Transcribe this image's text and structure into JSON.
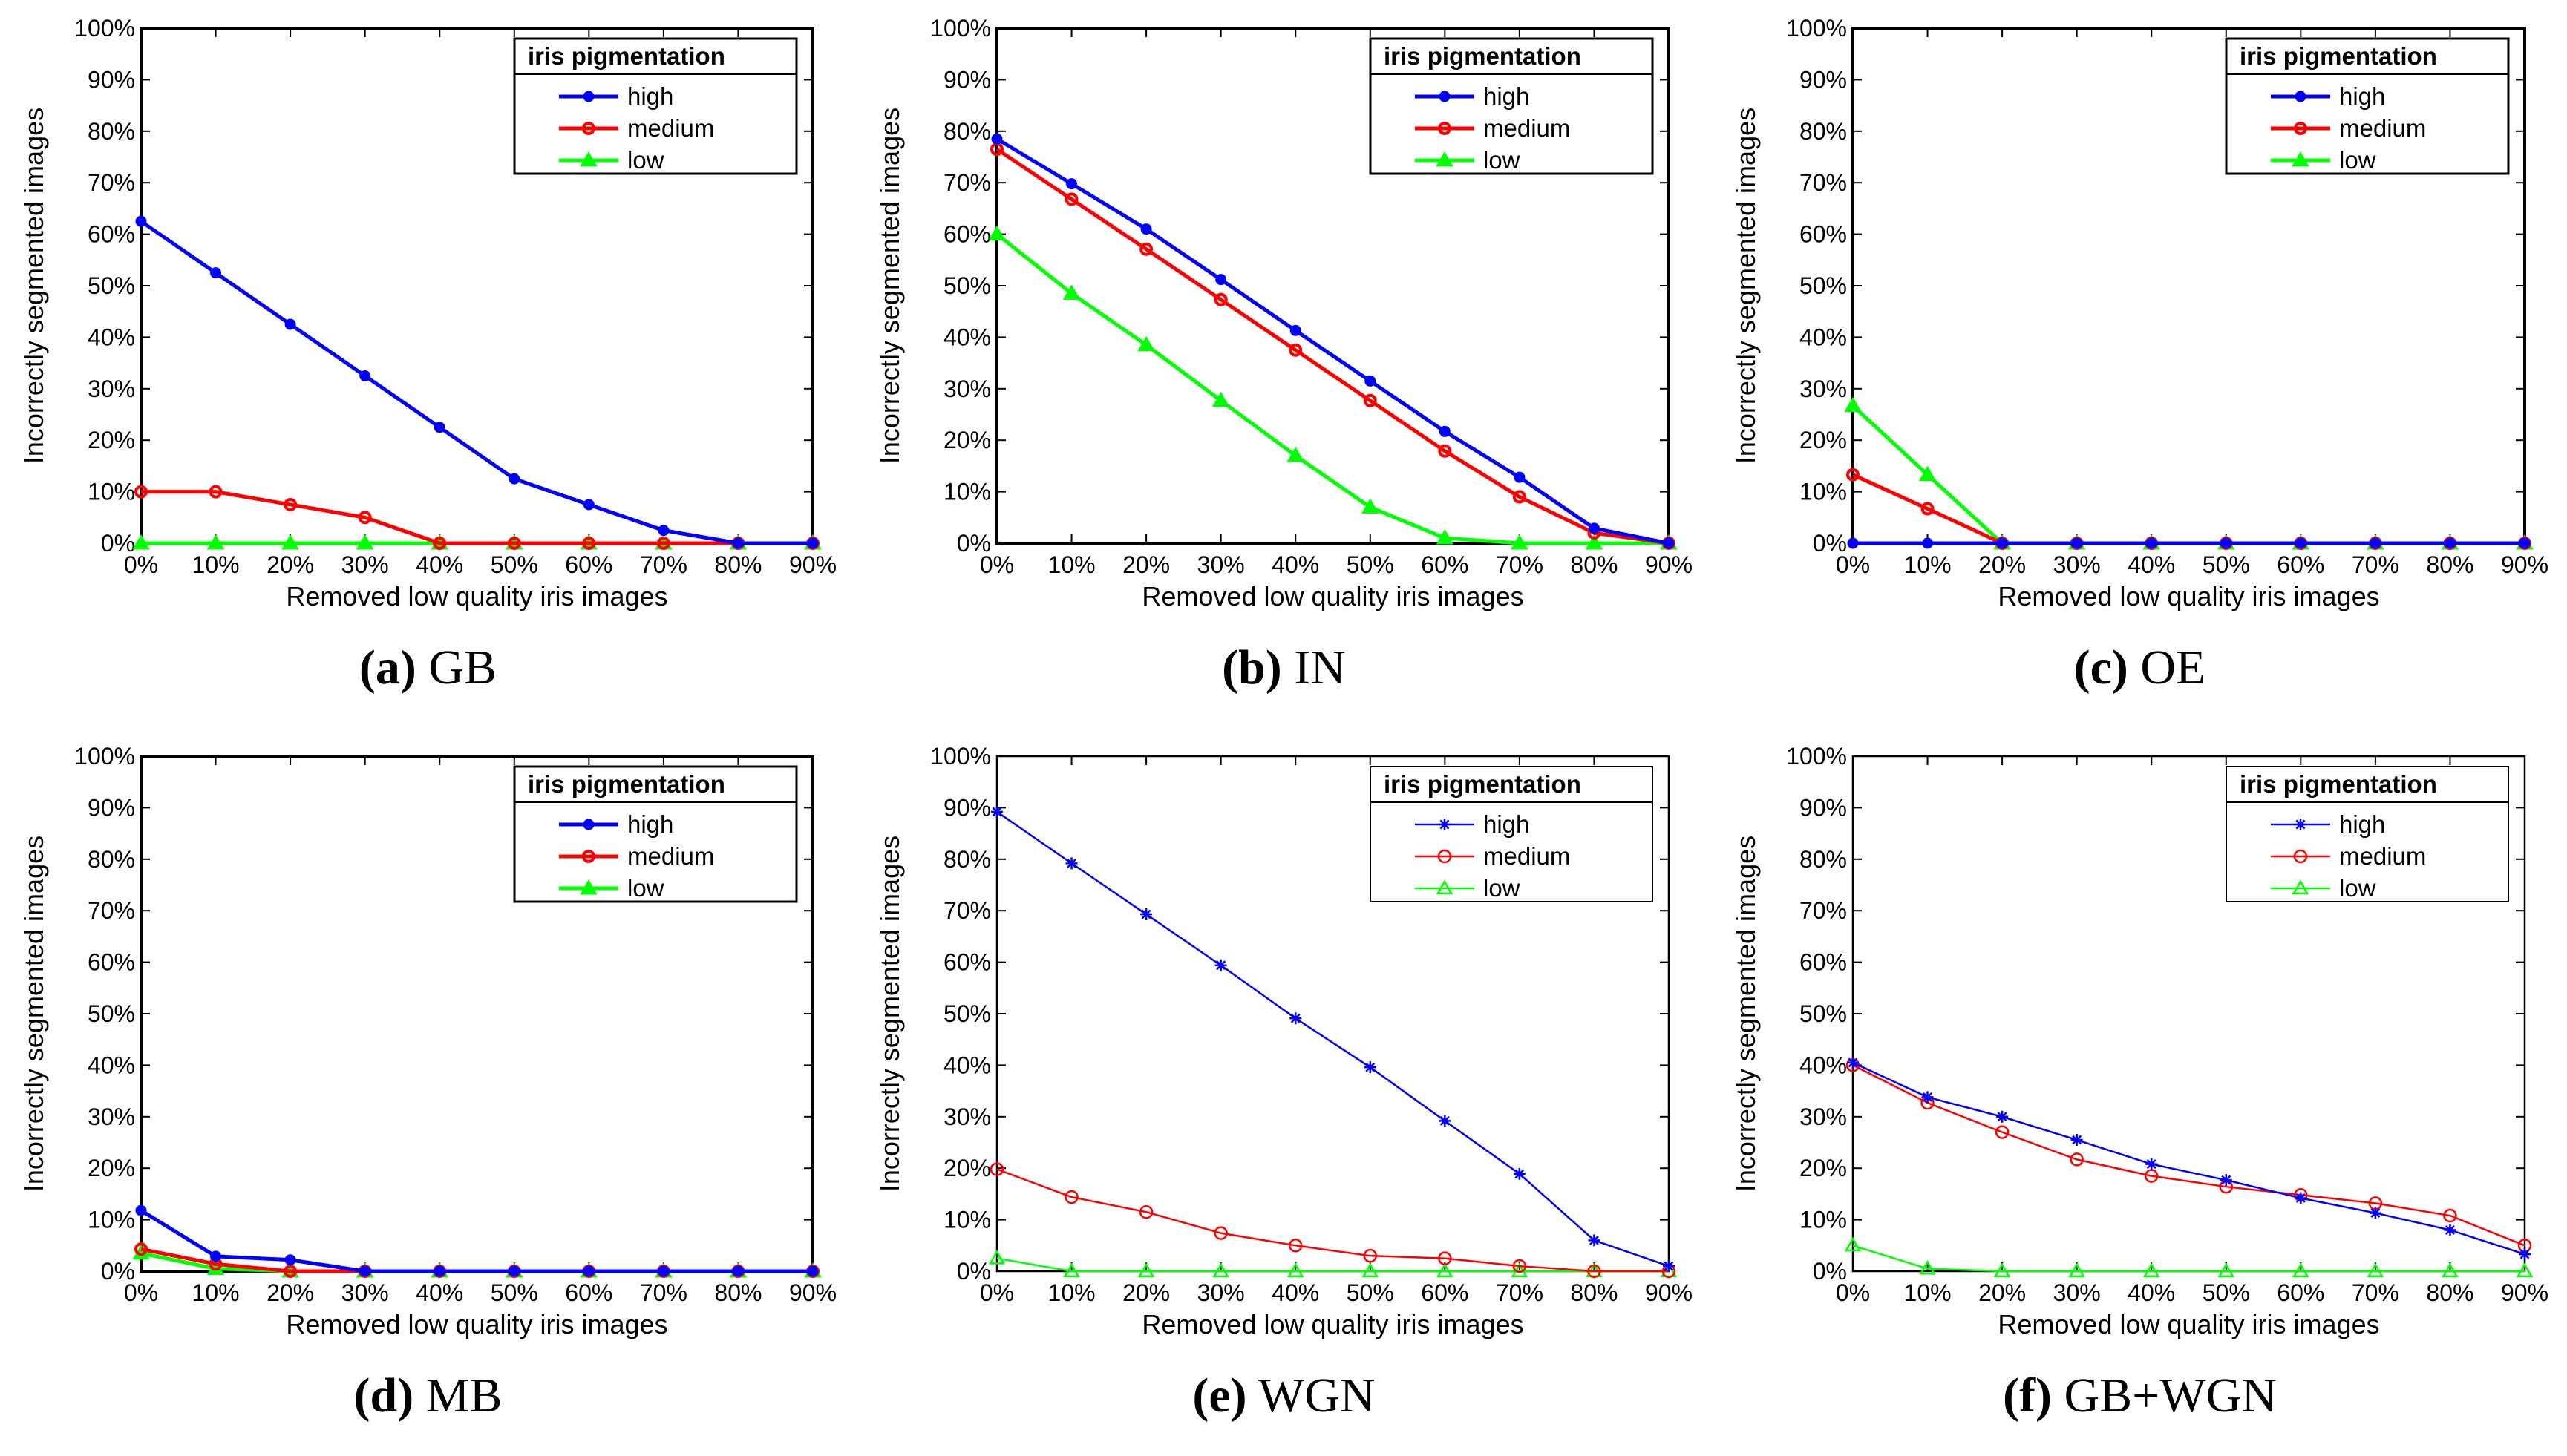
{
  "chart_data": [
    {
      "type": "line",
      "caption_letter": "(a)",
      "caption_text": "GB",
      "xlabel": "Removed low quality iris images",
      "ylabel": "Incorrectly segmented images",
      "categories": [
        "0%",
        "10%",
        "20%",
        "30%",
        "40%",
        "50%",
        "60%",
        "70%",
        "80%",
        "90%"
      ],
      "yticks": [
        "0%",
        "10%",
        "20%",
        "30%",
        "40%",
        "50%",
        "60%",
        "70%",
        "80%",
        "90%",
        "100%"
      ],
      "ylim": [
        0,
        100
      ],
      "legend_title": "iris pigmentation",
      "legend_position": "top-right",
      "style": "bold",
      "series": [
        {
          "name": "high",
          "color": "#0000ff",
          "marker": "dot",
          "values": [
            62.5,
            52.5,
            42.5,
            32.5,
            22.5,
            12.5,
            7.5,
            2.5,
            0,
            0
          ]
        },
        {
          "name": "medium",
          "color": "#ff0000",
          "marker": "circle",
          "values": [
            10,
            10,
            7.5,
            5,
            0,
            0,
            0,
            0,
            0,
            0
          ]
        },
        {
          "name": "low",
          "color": "#00ff00",
          "marker": "triangle",
          "values": [
            0,
            0,
            0,
            0,
            0,
            0,
            0,
            0,
            0,
            0
          ]
        }
      ]
    },
    {
      "type": "line",
      "caption_letter": "(b)",
      "caption_text": "IN",
      "xlabel": "Removed low quality iris images",
      "ylabel": "Incorrectly segmented images",
      "categories": [
        "0%",
        "10%",
        "20%",
        "30%",
        "40%",
        "50%",
        "60%",
        "70%",
        "80%",
        "90%"
      ],
      "yticks": [
        "0%",
        "10%",
        "20%",
        "30%",
        "40%",
        "50%",
        "60%",
        "70%",
        "80%",
        "90%",
        "100%"
      ],
      "ylim": [
        0,
        100
      ],
      "legend_title": "iris pigmentation",
      "legend_position": "top-right",
      "style": "bold",
      "series": [
        {
          "name": "high",
          "color": "#0000ff",
          "marker": "dot",
          "values": [
            78.5,
            69.8,
            61.0,
            51.2,
            41.3,
            31.5,
            21.7,
            12.8,
            2.9,
            0
          ]
        },
        {
          "name": "medium",
          "color": "#ff0000",
          "marker": "circle",
          "values": [
            76.5,
            66.8,
            57.1,
            47.3,
            37.5,
            27.7,
            17.9,
            9.0,
            2.0,
            0
          ]
        },
        {
          "name": "low",
          "color": "#00ff00",
          "marker": "triangle",
          "values": [
            60.0,
            48.5,
            38.5,
            27.7,
            17.0,
            7.0,
            1.0,
            0,
            0,
            0
          ]
        }
      ]
    },
    {
      "type": "line",
      "caption_letter": "(c)",
      "caption_text": "OE",
      "xlabel": "Removed low quality iris images",
      "ylabel": "Incorrectly segmented images",
      "categories": [
        "0%",
        "10%",
        "20%",
        "30%",
        "40%",
        "50%",
        "60%",
        "70%",
        "80%",
        "90%"
      ],
      "yticks": [
        "0%",
        "10%",
        "20%",
        "30%",
        "40%",
        "50%",
        "60%",
        "70%",
        "80%",
        "90%",
        "100%"
      ],
      "ylim": [
        0,
        100
      ],
      "legend_title": "iris pigmentation",
      "legend_position": "top-right",
      "style": "bold",
      "series": [
        {
          "name": "high",
          "color": "#0000ff",
          "marker": "dot",
          "values": [
            0,
            0,
            0,
            0,
            0,
            0,
            0,
            0,
            0,
            0
          ]
        },
        {
          "name": "medium",
          "color": "#ff0000",
          "marker": "circle",
          "values": [
            13.3,
            6.7,
            0,
            0,
            0,
            0,
            0,
            0,
            0,
            0
          ]
        },
        {
          "name": "low",
          "color": "#00ff00",
          "marker": "triangle",
          "values": [
            26.7,
            13.3,
            0,
            0,
            0,
            0,
            0,
            0,
            0,
            0
          ]
        }
      ]
    },
    {
      "type": "line",
      "caption_letter": "(d)",
      "caption_text": "MB",
      "xlabel": "Removed low quality iris images",
      "ylabel": "Incorrectly segmented images",
      "categories": [
        "0%",
        "10%",
        "20%",
        "30%",
        "40%",
        "50%",
        "60%",
        "70%",
        "80%",
        "90%"
      ],
      "yticks": [
        "0%",
        "10%",
        "20%",
        "30%",
        "40%",
        "50%",
        "60%",
        "70%",
        "80%",
        "90%",
        "100%"
      ],
      "ylim": [
        0,
        100
      ],
      "legend_title": "iris pigmentation",
      "legend_position": "top-right",
      "style": "bold",
      "series": [
        {
          "name": "high",
          "color": "#0000ff",
          "marker": "dot",
          "values": [
            11.8,
            2.9,
            2.2,
            0,
            0,
            0,
            0,
            0,
            0,
            0
          ]
        },
        {
          "name": "medium",
          "color": "#ff0000",
          "marker": "circle",
          "values": [
            4.3,
            1.4,
            0,
            0,
            0,
            0,
            0,
            0,
            0,
            0
          ]
        },
        {
          "name": "low",
          "color": "#00ff00",
          "marker": "triangle",
          "values": [
            3.5,
            0.5,
            0,
            0,
            0,
            0,
            0,
            0,
            0,
            0
          ]
        }
      ]
    },
    {
      "type": "line",
      "caption_letter": "(e)",
      "caption_text": "WGN",
      "xlabel": "Removed low quality iris images",
      "ylabel": "Incorrectly segmented images",
      "categories": [
        "0%",
        "10%",
        "20%",
        "30%",
        "40%",
        "50%",
        "60%",
        "70%",
        "80%",
        "90%"
      ],
      "yticks": [
        "0%",
        "10%",
        "20%",
        "30%",
        "40%",
        "50%",
        "60%",
        "70%",
        "80%",
        "90%",
        "100%"
      ],
      "ylim": [
        0,
        100
      ],
      "legend_title": "iris pigmentation",
      "legend_position": "top-right",
      "style": "thin",
      "series": [
        {
          "name": "high",
          "color": "#0000ff",
          "marker": "star",
          "values": [
            89.2,
            79.2,
            69.3,
            59.4,
            49.1,
            39.6,
            29.2,
            18.9,
            6.0,
            1.0
          ]
        },
        {
          "name": "medium",
          "color": "#ff0000",
          "marker": "circle",
          "values": [
            19.8,
            14.4,
            11.5,
            7.4,
            5.0,
            3.0,
            2.5,
            1.0,
            0,
            0
          ]
        },
        {
          "name": "low",
          "color": "#00ff00",
          "marker": "triangle",
          "values": [
            2.5,
            0,
            0,
            0,
            0,
            0,
            0,
            0,
            0,
            0
          ]
        }
      ]
    },
    {
      "type": "line",
      "caption_letter": "(f)",
      "caption_text": "GB+WGN",
      "xlabel": "Removed low quality iris images",
      "ylabel": "Incorrectly segmented images",
      "categories": [
        "0%",
        "10%",
        "20%",
        "30%",
        "40%",
        "50%",
        "60%",
        "70%",
        "80%",
        "90%"
      ],
      "yticks": [
        "0%",
        "10%",
        "20%",
        "30%",
        "40%",
        "50%",
        "60%",
        "70%",
        "80%",
        "90%",
        "100%"
      ],
      "ylim": [
        0,
        100
      ],
      "legend_title": "iris pigmentation",
      "legend_position": "top-right",
      "style": "thin",
      "series": [
        {
          "name": "high",
          "color": "#0000ff",
          "marker": "star",
          "values": [
            40.5,
            33.8,
            30.0,
            25.5,
            20.8,
            17.7,
            14.2,
            11.3,
            8.0,
            3.3
          ]
        },
        {
          "name": "medium",
          "color": "#ff0000",
          "marker": "circle",
          "values": [
            40.0,
            32.7,
            27.0,
            21.7,
            18.5,
            16.4,
            14.8,
            13.2,
            10.8,
            5.0
          ]
        },
        {
          "name": "low",
          "color": "#00ff00",
          "marker": "triangle",
          "values": [
            5.0,
            0.5,
            0,
            0,
            0,
            0,
            0,
            0,
            0,
            0
          ]
        }
      ]
    }
  ]
}
